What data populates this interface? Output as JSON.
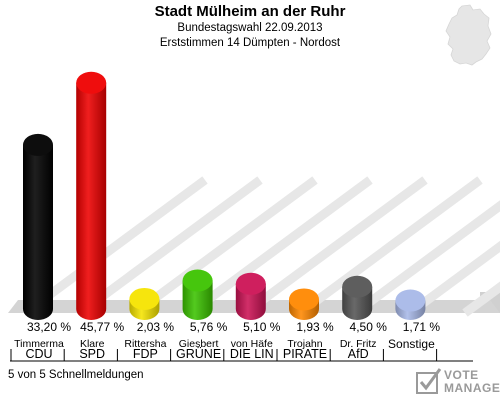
{
  "header": {
    "title": "Stadt Mülheim an der Ruhr",
    "line1": "Bundestagswahl 22.09.2013",
    "line2": "Erststimmen 14 Dümpten - Nordost"
  },
  "footer": {
    "note": "5 von 5 Schnellmeldungen",
    "logo_line1": "VOTE",
    "logo_line2": "MANAGER"
  },
  "chart_data": {
    "type": "bar",
    "ylim": [
      0,
      50
    ],
    "categories": [
      "CDU",
      "SPD",
      "FDP",
      "GRÜNE",
      "DIE LIN",
      "PIRATE",
      "AfD",
      "Sonstige"
    ],
    "candidates": [
      "Timmerma",
      "Klare",
      "Rittersha",
      "Giesbert",
      "von Häfe",
      "Trojahn",
      "Dr. Fritz",
      ""
    ],
    "values": [
      33.2,
      45.77,
      2.03,
      5.76,
      5.1,
      1.93,
      4.5,
      1.71
    ],
    "value_labels": [
      "33,20 %",
      "45,77 %",
      "2,03 %",
      "5,76 %",
      "5,10 %",
      "1,93 %",
      "4,50 %",
      "1,71 %"
    ],
    "colors": [
      "#000000",
      "#ee0000",
      "#f5e400",
      "#3cc300",
      "#cc1355",
      "#ff8800",
      "#555555",
      "#a8b8e8"
    ]
  }
}
